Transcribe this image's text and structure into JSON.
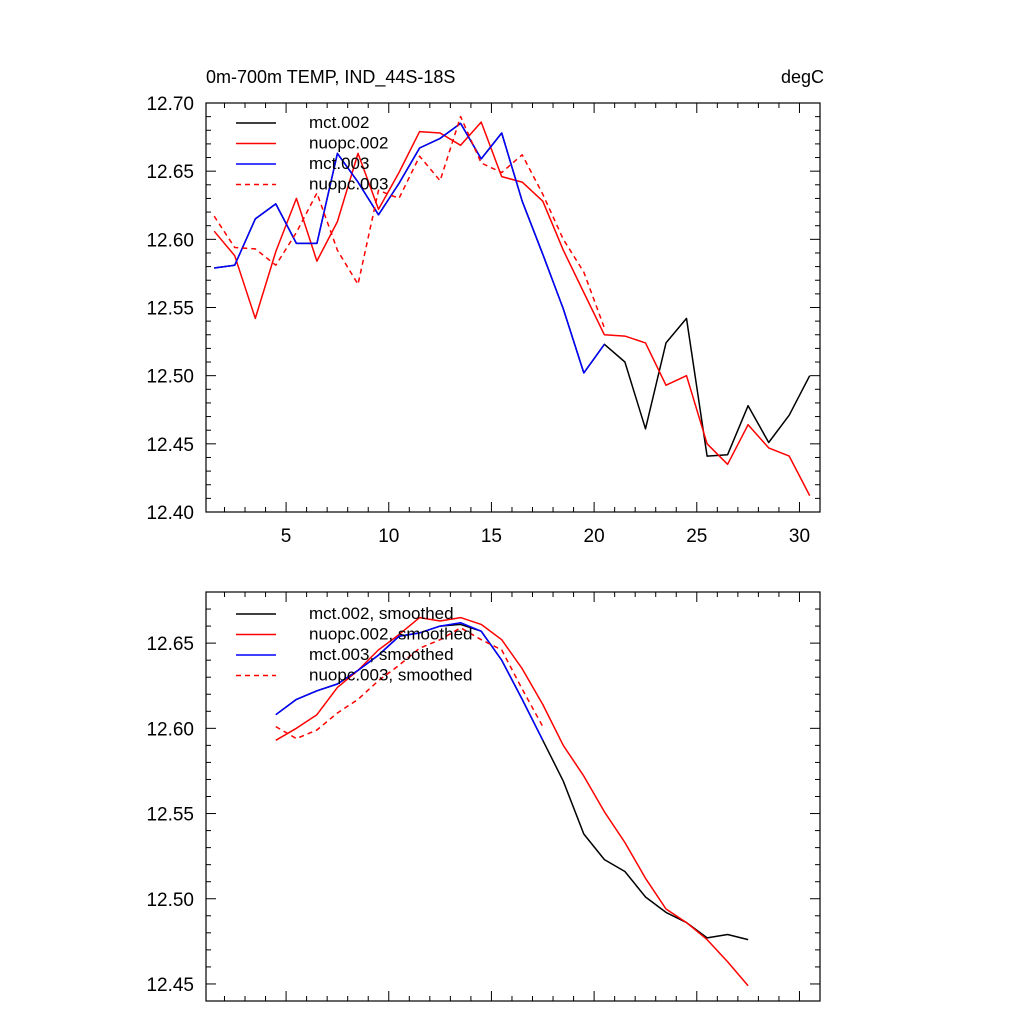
{
  "chart_data": [
    {
      "type": "line",
      "title": "0m-700m TEMP, IND_44S-18S",
      "units": "degC",
      "xlabel": "",
      "ylabel": "",
      "xlim": [
        1.1,
        31
      ],
      "ylim": [
        12.4,
        12.7
      ],
      "xticks": [
        5,
        10,
        15,
        20,
        25,
        30
      ],
      "xtick_labels": [
        "5",
        "10",
        "15",
        "20",
        "25",
        "30"
      ],
      "yticks": [
        12.4,
        12.45,
        12.5,
        12.55,
        12.6,
        12.65,
        12.7
      ],
      "ytick_labels": [
        "12.40",
        "12.45",
        "12.50",
        "12.55",
        "12.60",
        "12.65",
        "12.70"
      ],
      "legend": "top-left",
      "series": [
        {
          "name": "mct.002",
          "color": "#000000",
          "dash": "solid",
          "x": [
            1.5,
            2.5,
            3.5,
            4.5,
            5.5,
            6.5,
            7.5,
            8.5,
            9.5,
            10.5,
            11.5,
            12.5,
            13.5,
            14.5,
            15.5,
            16.5,
            17.5,
            18.5,
            19.5,
            20.5,
            21.5,
            22.5,
            23.5,
            24.5,
            25.5,
            26.5,
            27.5,
            28.5,
            29.5,
            30.5
          ],
          "values": [
            12.579,
            12.581,
            12.615,
            12.626,
            12.597,
            12.597,
            12.663,
            12.642,
            12.618,
            12.641,
            12.667,
            12.674,
            12.685,
            12.659,
            12.678,
            12.628,
            12.589,
            12.549,
            12.502,
            12.523,
            12.51,
            12.461,
            12.524,
            12.542,
            12.441,
            12.442,
            12.478,
            12.451,
            12.471,
            12.5
          ]
        },
        {
          "name": "nuopc.002",
          "color": "#ff0000",
          "dash": "solid",
          "x": [
            1.5,
            2.5,
            3.5,
            4.5,
            5.5,
            6.5,
            7.5,
            8.5,
            9.5,
            10.5,
            11.5,
            12.5,
            13.5,
            14.5,
            15.5,
            16.5,
            17.5,
            18.5,
            19.5,
            20.5,
            21.5,
            22.5,
            23.5,
            24.5,
            25.5,
            26.5,
            27.5,
            28.5,
            29.5,
            30.5
          ],
          "values": [
            12.606,
            12.588,
            12.542,
            12.591,
            12.63,
            12.584,
            12.613,
            12.663,
            12.622,
            12.649,
            12.679,
            12.678,
            12.669,
            12.686,
            12.646,
            12.642,
            12.628,
            12.592,
            12.561,
            12.53,
            12.529,
            12.524,
            12.493,
            12.5,
            12.45,
            12.435,
            12.464,
            12.447,
            12.441,
            12.412
          ]
        },
        {
          "name": "mct.003",
          "color": "#0000ff",
          "dash": "solid",
          "x": [
            1.5,
            2.5,
            3.5,
            4.5,
            5.5,
            6.5,
            7.5,
            8.5,
            9.5,
            10.5,
            11.5,
            12.5,
            13.5,
            14.5,
            15.5,
            16.5,
            17.5,
            18.5,
            19.5,
            20.5
          ],
          "values": [
            12.579,
            12.581,
            12.615,
            12.626,
            12.597,
            12.597,
            12.663,
            12.642,
            12.618,
            12.641,
            12.667,
            12.674,
            12.685,
            12.659,
            12.678,
            12.628,
            12.589,
            12.549,
            12.502,
            12.523
          ]
        },
        {
          "name": "nuopc.003",
          "color": "#ff0000",
          "dash": "dashed",
          "x": [
            1.5,
            2.5,
            3.5,
            4.5,
            5.5,
            6.5,
            7.5,
            8.5,
            9.5,
            10.5,
            11.5,
            12.5,
            13.5,
            14.5,
            15.5,
            16.5,
            17.5,
            18.5,
            19.5,
            20.5
          ],
          "values": [
            12.617,
            12.594,
            12.593,
            12.581,
            12.605,
            12.634,
            12.592,
            12.567,
            12.636,
            12.63,
            12.661,
            12.643,
            12.69,
            12.656,
            12.649,
            12.662,
            12.633,
            12.6,
            12.576,
            12.535
          ]
        }
      ]
    },
    {
      "type": "line",
      "title": "",
      "xlabel": "",
      "ylabel": "",
      "xlim": [
        1.1,
        31
      ],
      "ylim": [
        12.44,
        12.68
      ],
      "xticks": [
        5,
        10,
        15,
        20,
        25,
        30
      ],
      "xtick_labels": [],
      "yticks": [
        12.45,
        12.5,
        12.55,
        12.6,
        12.65
      ],
      "ytick_labels": [
        "12.45",
        "12.50",
        "12.55",
        "12.60",
        "12.65"
      ],
      "legend": "top-left",
      "series": [
        {
          "name": "mct.002, smoothed",
          "color": "#000000",
          "dash": "solid",
          "x": [
            4.5,
            5.5,
            6.5,
            7.5,
            8.5,
            9.5,
            10.5,
            11.5,
            12.5,
            13.5,
            14.5,
            15.5,
            16.5,
            17.5,
            18.5,
            19.5,
            20.5,
            21.5,
            22.5,
            23.5,
            24.5,
            25.5,
            26.5,
            27.5
          ],
          "values": [
            12.608,
            12.617,
            12.622,
            12.626,
            12.634,
            12.643,
            12.654,
            12.656,
            12.66,
            12.661,
            12.657,
            12.64,
            12.617,
            12.593,
            12.569,
            12.538,
            12.523,
            12.516,
            12.501,
            12.492,
            12.486,
            12.477,
            12.479,
            12.476
          ]
        },
        {
          "name": "nuopc.002, smoothed",
          "color": "#ff0000",
          "dash": "solid",
          "x": [
            4.5,
            5.5,
            6.5,
            7.5,
            8.5,
            9.5,
            10.5,
            11.5,
            12.5,
            13.5,
            14.5,
            15.5,
            16.5,
            17.5,
            18.5,
            19.5,
            20.5,
            21.5,
            22.5,
            23.5,
            24.5,
            25.5,
            26.5,
            27.5
          ],
          "values": [
            12.593,
            12.6,
            12.608,
            12.624,
            12.634,
            12.646,
            12.655,
            12.665,
            12.663,
            12.665,
            12.661,
            12.652,
            12.635,
            12.614,
            12.59,
            12.572,
            12.551,
            12.533,
            12.512,
            12.494,
            12.486,
            12.476,
            12.463,
            12.449
          ]
        },
        {
          "name": "mct.003, smoothed",
          "color": "#0000ff",
          "dash": "solid",
          "x": [
            4.5,
            5.5,
            6.5,
            7.5,
            8.5,
            9.5,
            10.5,
            11.5,
            12.5,
            13.5,
            14.5,
            15.5,
            16.5,
            17.5
          ],
          "values": [
            12.608,
            12.617,
            12.622,
            12.626,
            12.634,
            12.643,
            12.654,
            12.656,
            12.66,
            12.662,
            12.657,
            12.64,
            12.617,
            12.593
          ]
        },
        {
          "name": "nuopc.003, smoothed",
          "color": "#ff0000",
          "dash": "dashed",
          "x": [
            4.5,
            5.5,
            6.5,
            7.5,
            8.5,
            9.5,
            10.5,
            11.5,
            12.5,
            13.5,
            14.5,
            15.5,
            16.5,
            17.5
          ],
          "values": [
            12.601,
            12.594,
            12.599,
            12.609,
            12.617,
            12.628,
            12.637,
            12.647,
            12.652,
            12.659,
            12.652,
            12.646,
            12.623,
            12.601
          ]
        }
      ]
    }
  ]
}
